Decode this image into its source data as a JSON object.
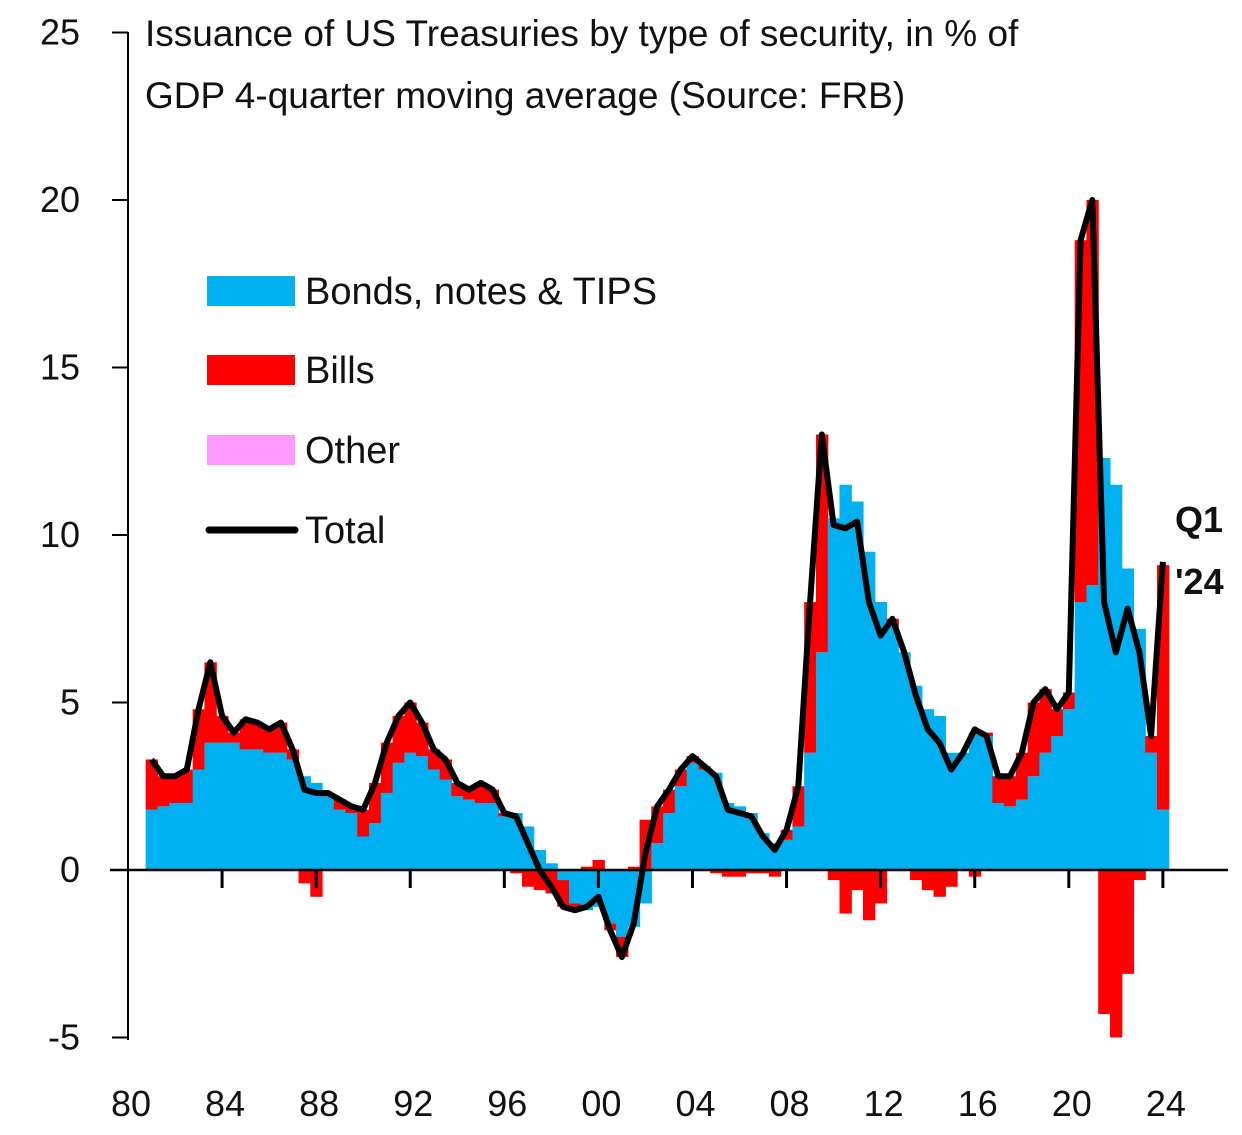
{
  "chart_data": {
    "type": "bar",
    "title_lines": [
      "Issuance of US Treasuries by type of security, in % of",
      "GDP 4-quarter moving average (Source: FRB)"
    ],
    "xlabel": "",
    "ylabel": "",
    "ylim": [
      -5,
      25
    ],
    "xlim": [
      1980,
      2026.5
    ],
    "yticks": [
      "-5",
      "0",
      "5",
      "10",
      "15",
      "20",
      "25"
    ],
    "ytick_values": [
      -5,
      0,
      5,
      10,
      15,
      20,
      25
    ],
    "xticks": [
      "80",
      "84",
      "88",
      "92",
      "96",
      "00",
      "04",
      "08",
      "12",
      "16",
      "20",
      "24"
    ],
    "xtick_values": [
      1980,
      1984,
      1988,
      1992,
      1996,
      2000,
      2004,
      2008,
      2012,
      2016,
      2020,
      2024
    ],
    "grid": false,
    "legend_placement": "upper-left",
    "legend": [
      {
        "name": "Bonds, notes & TIPS",
        "color": "#00B0F0",
        "kind": "bar"
      },
      {
        "name": "Bills",
        "color": "#FF0000",
        "kind": "bar"
      },
      {
        "name": "Other",
        "color": "#FF99FF",
        "kind": "bar"
      },
      {
        "name": "Total",
        "color": "#000000",
        "kind": "line"
      }
    ],
    "annotation": {
      "line1": "Q1",
      "line2": "'24"
    },
    "x": [
      1981.0,
      1981.5,
      1982.0,
      1982.5,
      1983.0,
      1983.5,
      1984.0,
      1984.5,
      1985.0,
      1985.5,
      1986.0,
      1986.5,
      1987.0,
      1987.5,
      1988.0,
      1988.5,
      1989.0,
      1989.5,
      1990.0,
      1990.5,
      1991.0,
      1991.5,
      1992.0,
      1992.5,
      1993.0,
      1993.5,
      1994.0,
      1994.5,
      1995.0,
      1995.5,
      1996.0,
      1996.5,
      1997.0,
      1997.5,
      1998.0,
      1998.5,
      1999.0,
      1999.5,
      2000.0,
      2000.5,
      2001.0,
      2001.5,
      2002.0,
      2002.5,
      2003.0,
      2003.5,
      2004.0,
      2004.5,
      2005.0,
      2005.5,
      2006.0,
      2006.5,
      2007.0,
      2007.5,
      2008.0,
      2008.5,
      2009.0,
      2009.5,
      2010.0,
      2010.5,
      2011.0,
      2011.5,
      2012.0,
      2012.5,
      2013.0,
      2013.5,
      2014.0,
      2014.5,
      2015.0,
      2015.5,
      2016.0,
      2016.5,
      2017.0,
      2017.5,
      2018.0,
      2018.5,
      2019.0,
      2019.5,
      2020.0,
      2020.5,
      2021.0,
      2021.5,
      2022.0,
      2022.5,
      2023.0,
      2023.5,
      2024.0
    ],
    "series": [
      {
        "name": "Bonds, notes & TIPS",
        "values": [
          1.8,
          1.9,
          2.0,
          2.0,
          3.0,
          3.8,
          3.8,
          3.8,
          3.6,
          3.6,
          3.5,
          3.5,
          3.3,
          2.8,
          2.6,
          2.2,
          1.8,
          1.7,
          1.0,
          1.4,
          2.3,
          3.2,
          3.5,
          3.4,
          3.0,
          2.7,
          2.2,
          2.1,
          2.0,
          2.0,
          1.6,
          1.7,
          1.3,
          0.6,
          0.2,
          -0.3,
          -1.0,
          -1.2,
          -1.1,
          -1.6,
          -2.0,
          -1.7,
          -1.0,
          0.8,
          1.7,
          2.5,
          3.2,
          3.0,
          2.9,
          2.0,
          1.9,
          1.7,
          1.1,
          0.8,
          0.9,
          1.3,
          3.5,
          6.5,
          10.5,
          11.5,
          11.0,
          9.5,
          8.0,
          7.3,
          6.5,
          5.5,
          4.8,
          4.6,
          3.5,
          3.5,
          4.1,
          4.0,
          2.0,
          1.9,
          2.1,
          2.8,
          3.5,
          4.0,
          4.8,
          8.0,
          8.5,
          12.3,
          11.5,
          9.0,
          7.2,
          3.5,
          1.8
        ]
      },
      {
        "name": "Bills",
        "values": [
          1.5,
          0.9,
          0.8,
          1.0,
          1.8,
          2.4,
          0.8,
          0.3,
          0.9,
          0.8,
          0.7,
          0.9,
          0.3,
          -0.4,
          -0.8,
          0.1,
          0.3,
          0.2,
          0.8,
          1.2,
          1.5,
          1.4,
          1.5,
          1.0,
          0.6,
          0.6,
          0.4,
          0.3,
          0.6,
          0.4,
          0.1,
          -0.1,
          -0.5,
          -0.6,
          -0.7,
          -0.8,
          -0.2,
          0.1,
          0.3,
          -0.2,
          -0.6,
          0.1,
          1.5,
          1.1,
          0.7,
          0.5,
          0.2,
          0.1,
          -0.1,
          -0.2,
          -0.2,
          -0.1,
          -0.1,
          -0.2,
          0.3,
          1.2,
          4.5,
          6.5,
          -0.3,
          -1.3,
          -0.6,
          -1.5,
          -1.0,
          0.2,
          0.0,
          -0.3,
          -0.6,
          -0.8,
          -0.5,
          0.0,
          -0.2,
          0.1,
          0.8,
          0.9,
          1.4,
          2.2,
          1.9,
          0.8,
          0.5,
          10.8,
          11.5,
          -4.3,
          -5.0,
          -3.1,
          -0.3,
          0.5,
          7.3
        ]
      },
      {
        "name": "Total",
        "values": [
          3.3,
          2.8,
          2.8,
          3.0,
          4.8,
          6.2,
          4.6,
          4.1,
          4.5,
          4.4,
          4.2,
          4.4,
          3.6,
          2.4,
          2.3,
          2.3,
          2.1,
          1.9,
          1.8,
          2.6,
          3.8,
          4.6,
          5.0,
          4.4,
          3.6,
          3.3,
          2.6,
          2.4,
          2.6,
          2.4,
          1.7,
          1.6,
          0.8,
          0.0,
          -0.5,
          -1.1,
          -1.2,
          -1.1,
          -0.8,
          -1.8,
          -2.6,
          -1.6,
          0.5,
          1.9,
          2.4,
          3.0,
          3.4,
          3.1,
          2.8,
          1.8,
          1.7,
          1.6,
          1.0,
          0.6,
          1.2,
          2.5,
          8.0,
          13.0,
          10.3,
          10.2,
          10.4,
          8.0,
          7.0,
          7.5,
          6.5,
          5.2,
          4.2,
          3.8,
          3.0,
          3.5,
          4.2,
          4.0,
          2.8,
          2.8,
          3.5,
          5.0,
          5.4,
          4.8,
          5.3,
          18.8,
          20.0,
          8.0,
          6.5,
          7.8,
          6.5,
          4.0,
          9.2
        ]
      }
    ]
  }
}
